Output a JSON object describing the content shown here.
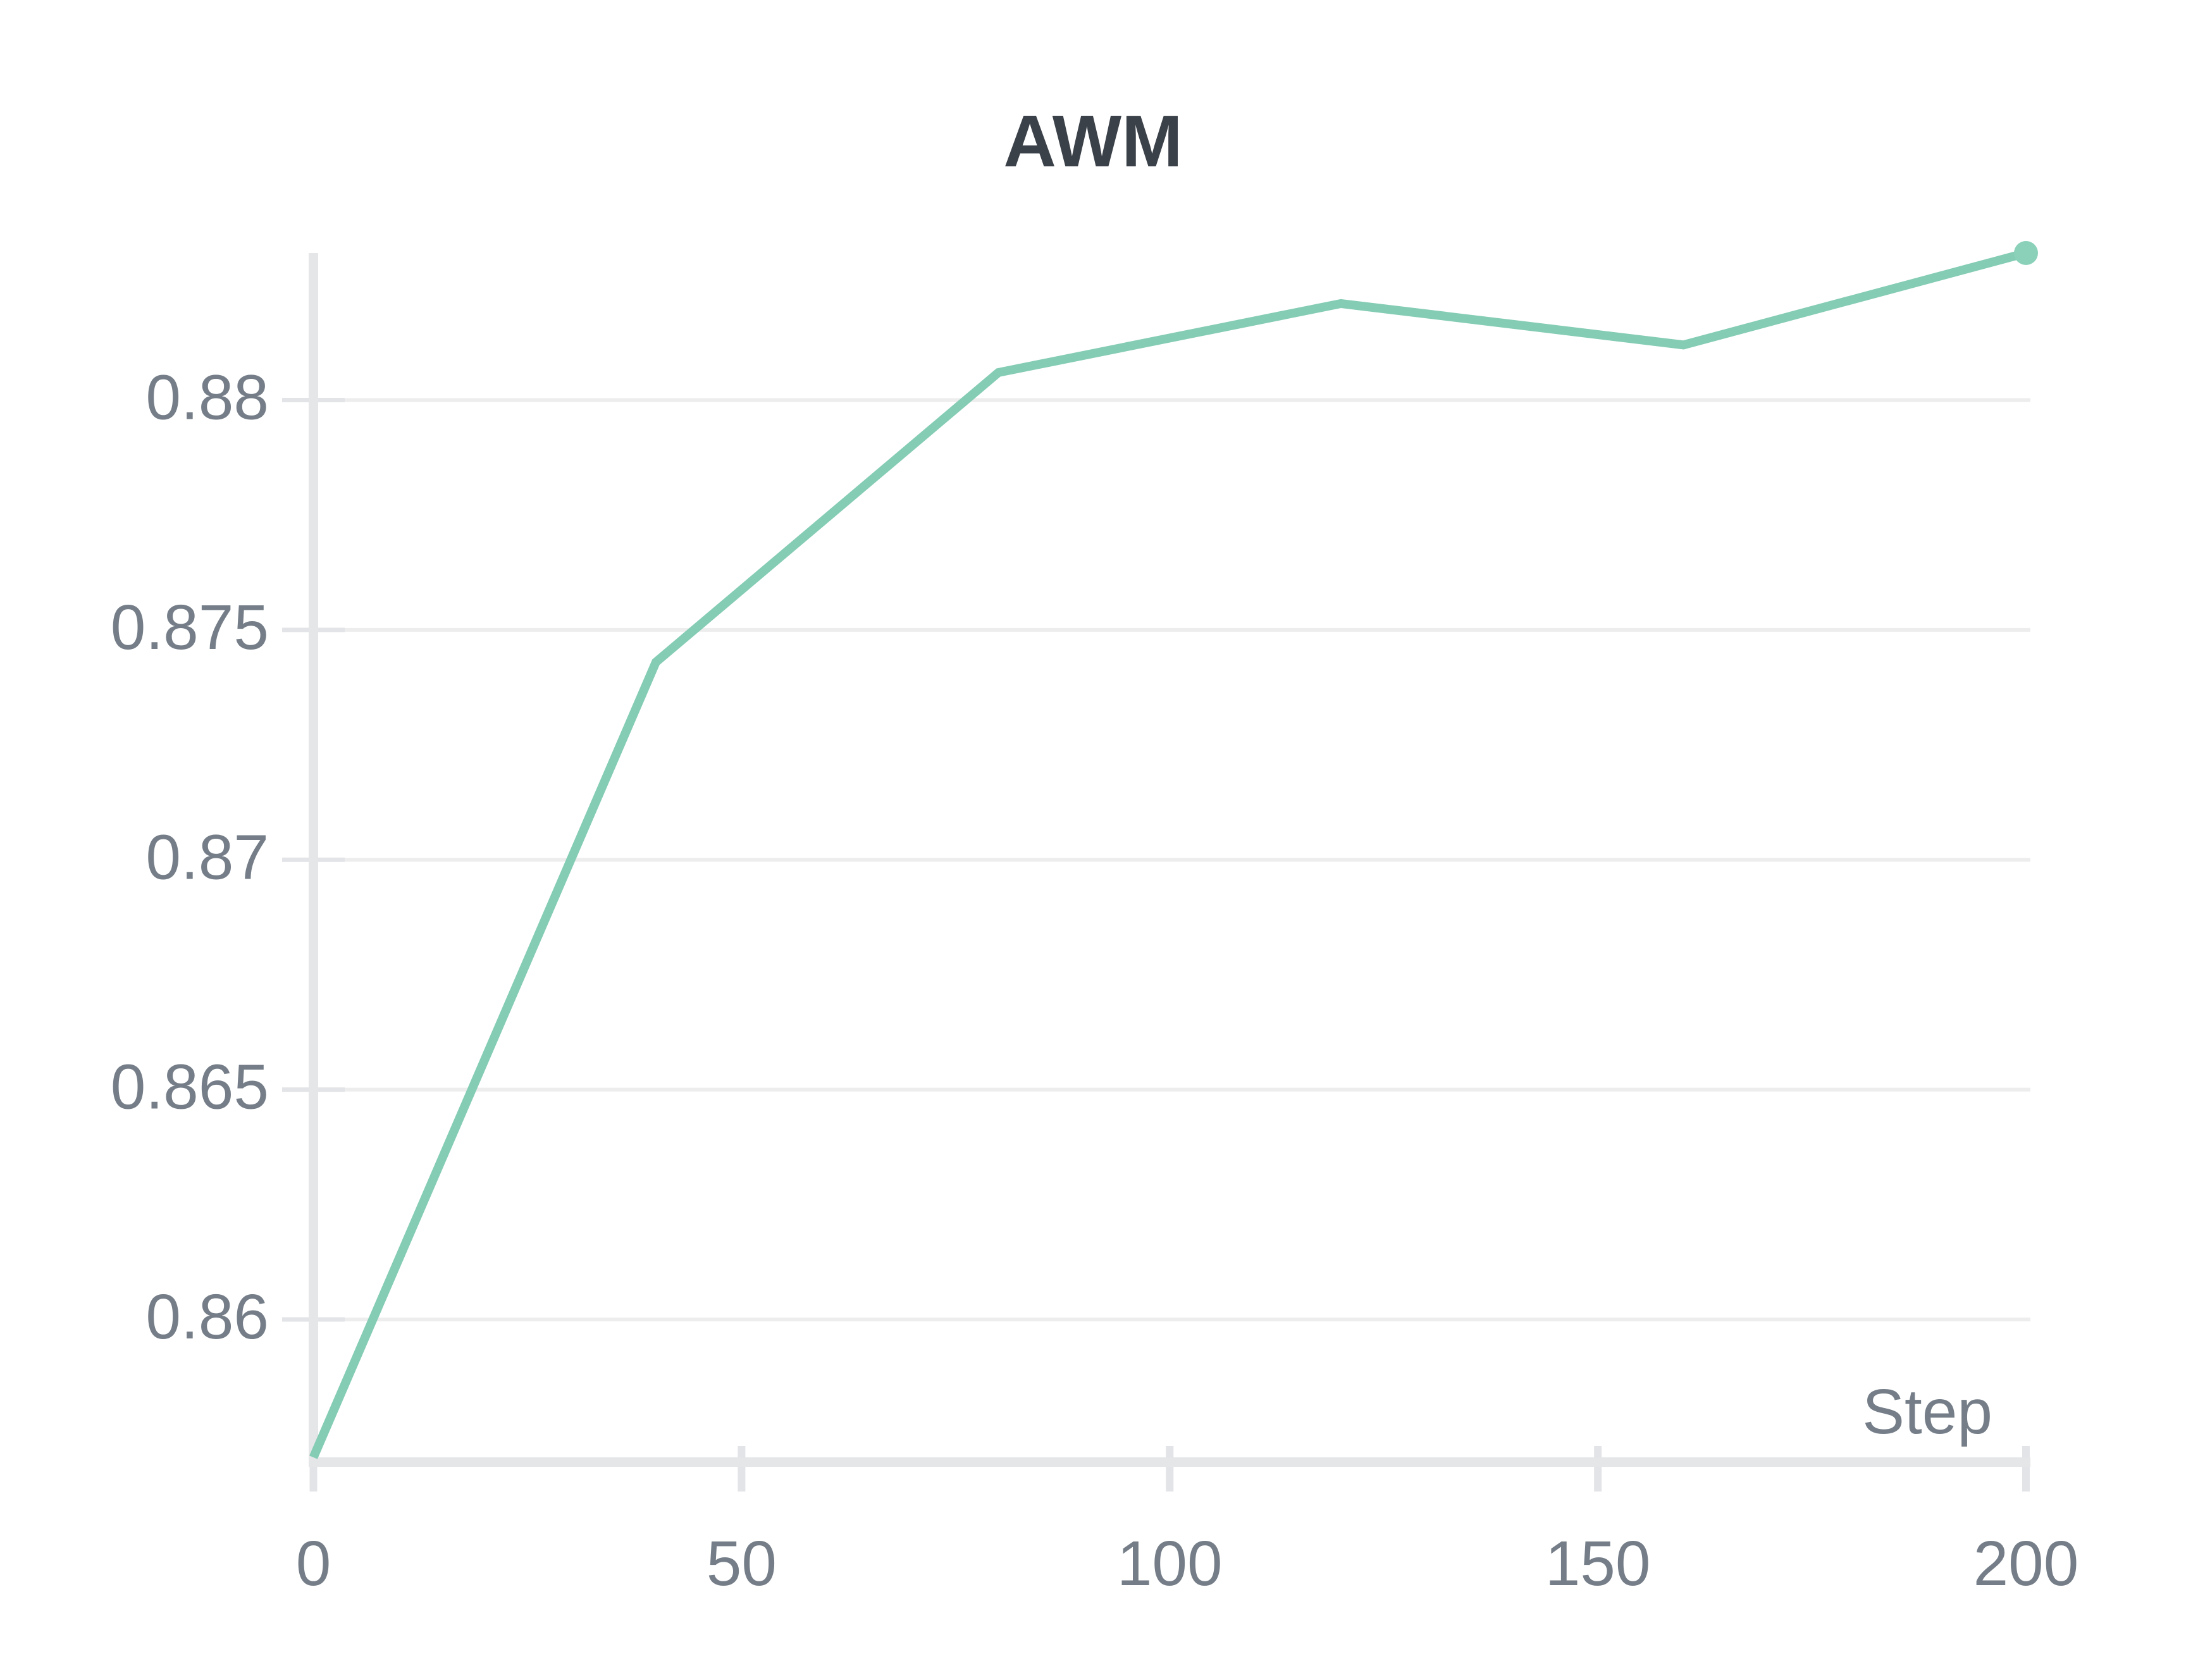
{
  "chart_data": {
    "type": "line",
    "title": "AWM",
    "xlabel": "Step",
    "ylabel": "",
    "x": [
      0,
      40,
      80,
      120,
      160,
      200
    ],
    "series": [
      {
        "name": "AWM",
        "values": [
          0.857,
          0.8743,
          0.8806,
          0.8821,
          0.8812,
          0.8832
        ]
      }
    ],
    "xlim": [
      0,
      200
    ],
    "ylim": [
      0.857,
      0.8832
    ],
    "x_ticks": {
      "values": [
        0,
        50,
        100,
        150,
        200
      ],
      "labels": [
        "0",
        "50",
        "100",
        "150",
        "200"
      ]
    },
    "y_ticks": {
      "values": [
        0.86,
        0.865,
        0.87,
        0.875,
        0.88
      ],
      "labels": [
        "0.86",
        "0.865",
        "0.87",
        "0.875",
        "0.88"
      ]
    },
    "grid": "horizontal-only",
    "legend": "none",
    "end_point_marker": true
  },
  "style": {
    "line_color": "#84ccb4",
    "end_dot_color": "#8bd1ba",
    "axis_color": "#e5e6e8",
    "tick_mark_color": "#e3e4e7",
    "gridline_color": "#ededee",
    "tick_label_color": "#757e88",
    "title_color": "#3b4149",
    "background_color": "#ffffff"
  }
}
